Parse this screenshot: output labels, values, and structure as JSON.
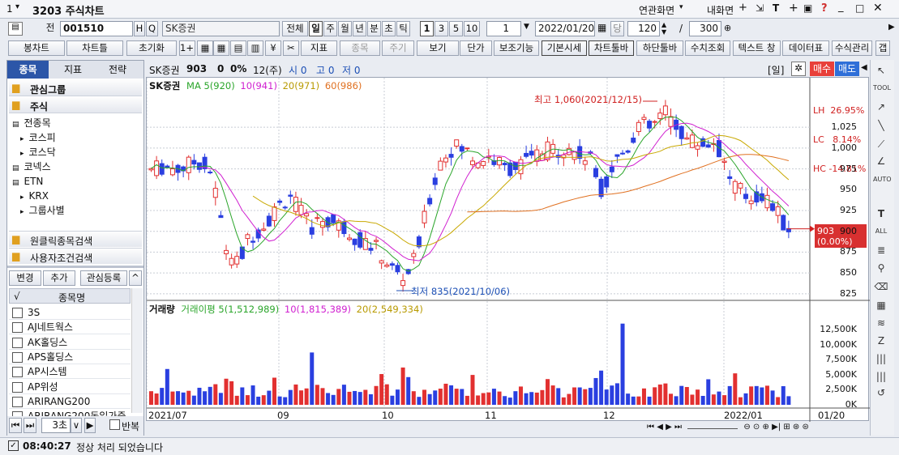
{
  "window": {
    "tab_num": "1",
    "title": "3203 주식차트",
    "linked_screen": "연관화면",
    "my_screen": "내화면",
    "help": "?"
  },
  "toolbar1": {
    "code": "001510",
    "h_btn": "H",
    "q_btn": "Q",
    "name": "SK증권",
    "periods": [
      "전체",
      "일",
      "주",
      "월",
      "년",
      "분",
      "초",
      "틱"
    ],
    "intervals": [
      "1",
      "3",
      "5",
      "10"
    ],
    "count": "1",
    "date": "2022/01/20",
    "dang": "당",
    "bars": "120",
    "slash": "/",
    "max_bars": "300",
    "jeon": "전"
  },
  "toolbar2": {
    "buttons": [
      "봉차트",
      "차트틀",
      "초기화",
      "1+1",
      "지표",
      "종목",
      "주기",
      "보기",
      "단가",
      "보조기능",
      "기본시세",
      "차트툴바",
      "하단툴바",
      "수치조회",
      "텍스트 창",
      "데이터표",
      "수식관리",
      "갭"
    ]
  },
  "sidebar": {
    "tabs": [
      "종목",
      "지표",
      "전략"
    ],
    "groups": [
      {
        "label": "관심그룹"
      },
      {
        "label": "주식"
      }
    ],
    "tree": [
      {
        "label": "전종목",
        "level": 0
      },
      {
        "label": "코스피",
        "level": 1
      },
      {
        "label": "코스닥",
        "level": 1
      },
      {
        "label": "코넥스",
        "level": 0
      },
      {
        "label": "ETN",
        "level": 0
      },
      {
        "label": "KRX",
        "level": 1
      },
      {
        "label": "그룹사별",
        "level": 1
      }
    ],
    "searches": [
      "원클릭종목검색",
      "사용자조건검색"
    ],
    "actions": [
      "변경",
      "추가",
      "관심등록"
    ],
    "list_header": {
      "check": "√",
      "name": "종목명"
    },
    "stocks": [
      "3S",
      "AJ네트웍스",
      "AK홀딩스",
      "APS홀딩스",
      "AP시스템",
      "AP위성",
      "ARIRANG200",
      "ARIRANG200동일가중"
    ],
    "footer": {
      "speed": "3초",
      "repeat": "반복"
    }
  },
  "chart_header": {
    "name": "SK증권",
    "price": "903",
    "change": "0",
    "pct": "0%",
    "qty": "12(주)",
    "open": "시 0",
    "high": "고 0",
    "low": "저 0",
    "period": "[일]",
    "buy": "매수",
    "sell": "매도"
  },
  "price_panel": {
    "title": "SK증권",
    "ma_label": "MA",
    "ma": [
      {
        "label": "5(920)",
        "color": "#2aa52a"
      },
      {
        "label": "10(941)",
        "color": "#d020d0"
      },
      {
        "label": "20(971)",
        "color": "#c8a800"
      },
      {
        "label": "60(986)",
        "color": "#e07020"
      }
    ],
    "high_note": "최고 1,060(2021/12/15)",
    "low_note": "최저 835(2021/10/06)",
    "lh": "LH  26.95%",
    "lc": "LC   8.14%",
    "hc": "HC -14.81%",
    "cur_price": "903",
    "cur_pct": "(0.00%)"
  },
  "volume_panel": {
    "title": "거래량",
    "ma_label": "거래이평",
    "ma": [
      {
        "label": "5(1,512,989)",
        "color": "#2aa52a"
      },
      {
        "label": "10(1,815,389)",
        "color": "#d020d0"
      },
      {
        "label": "20(2,549,334)",
        "color": "#c8a800"
      }
    ]
  },
  "x_axis": {
    "labels": [
      "2021/07",
      "09",
      "10",
      "11",
      "12",
      "2022/01"
    ],
    "last": "01/20"
  },
  "status": {
    "time": "08:40:27",
    "msg": "정상 처리 되었습니다"
  },
  "chart_data": {
    "type": "candlestick",
    "price_axis": {
      "ticks": [
        825,
        850,
        875,
        900,
        925,
        950,
        975,
        1000,
        1025
      ],
      "range": [
        820,
        1065
      ]
    },
    "volume_axis": {
      "ticks": [
        "0K",
        "2,500K",
        "5,000K",
        "7,500K",
        "10,000K",
        "12,500K"
      ],
      "max": 14000
    },
    "annotations": {
      "max": {
        "value": 1060,
        "date": "2021/12/15"
      },
      "min": {
        "value": 835,
        "date": "2021/10/06"
      }
    }
  }
}
